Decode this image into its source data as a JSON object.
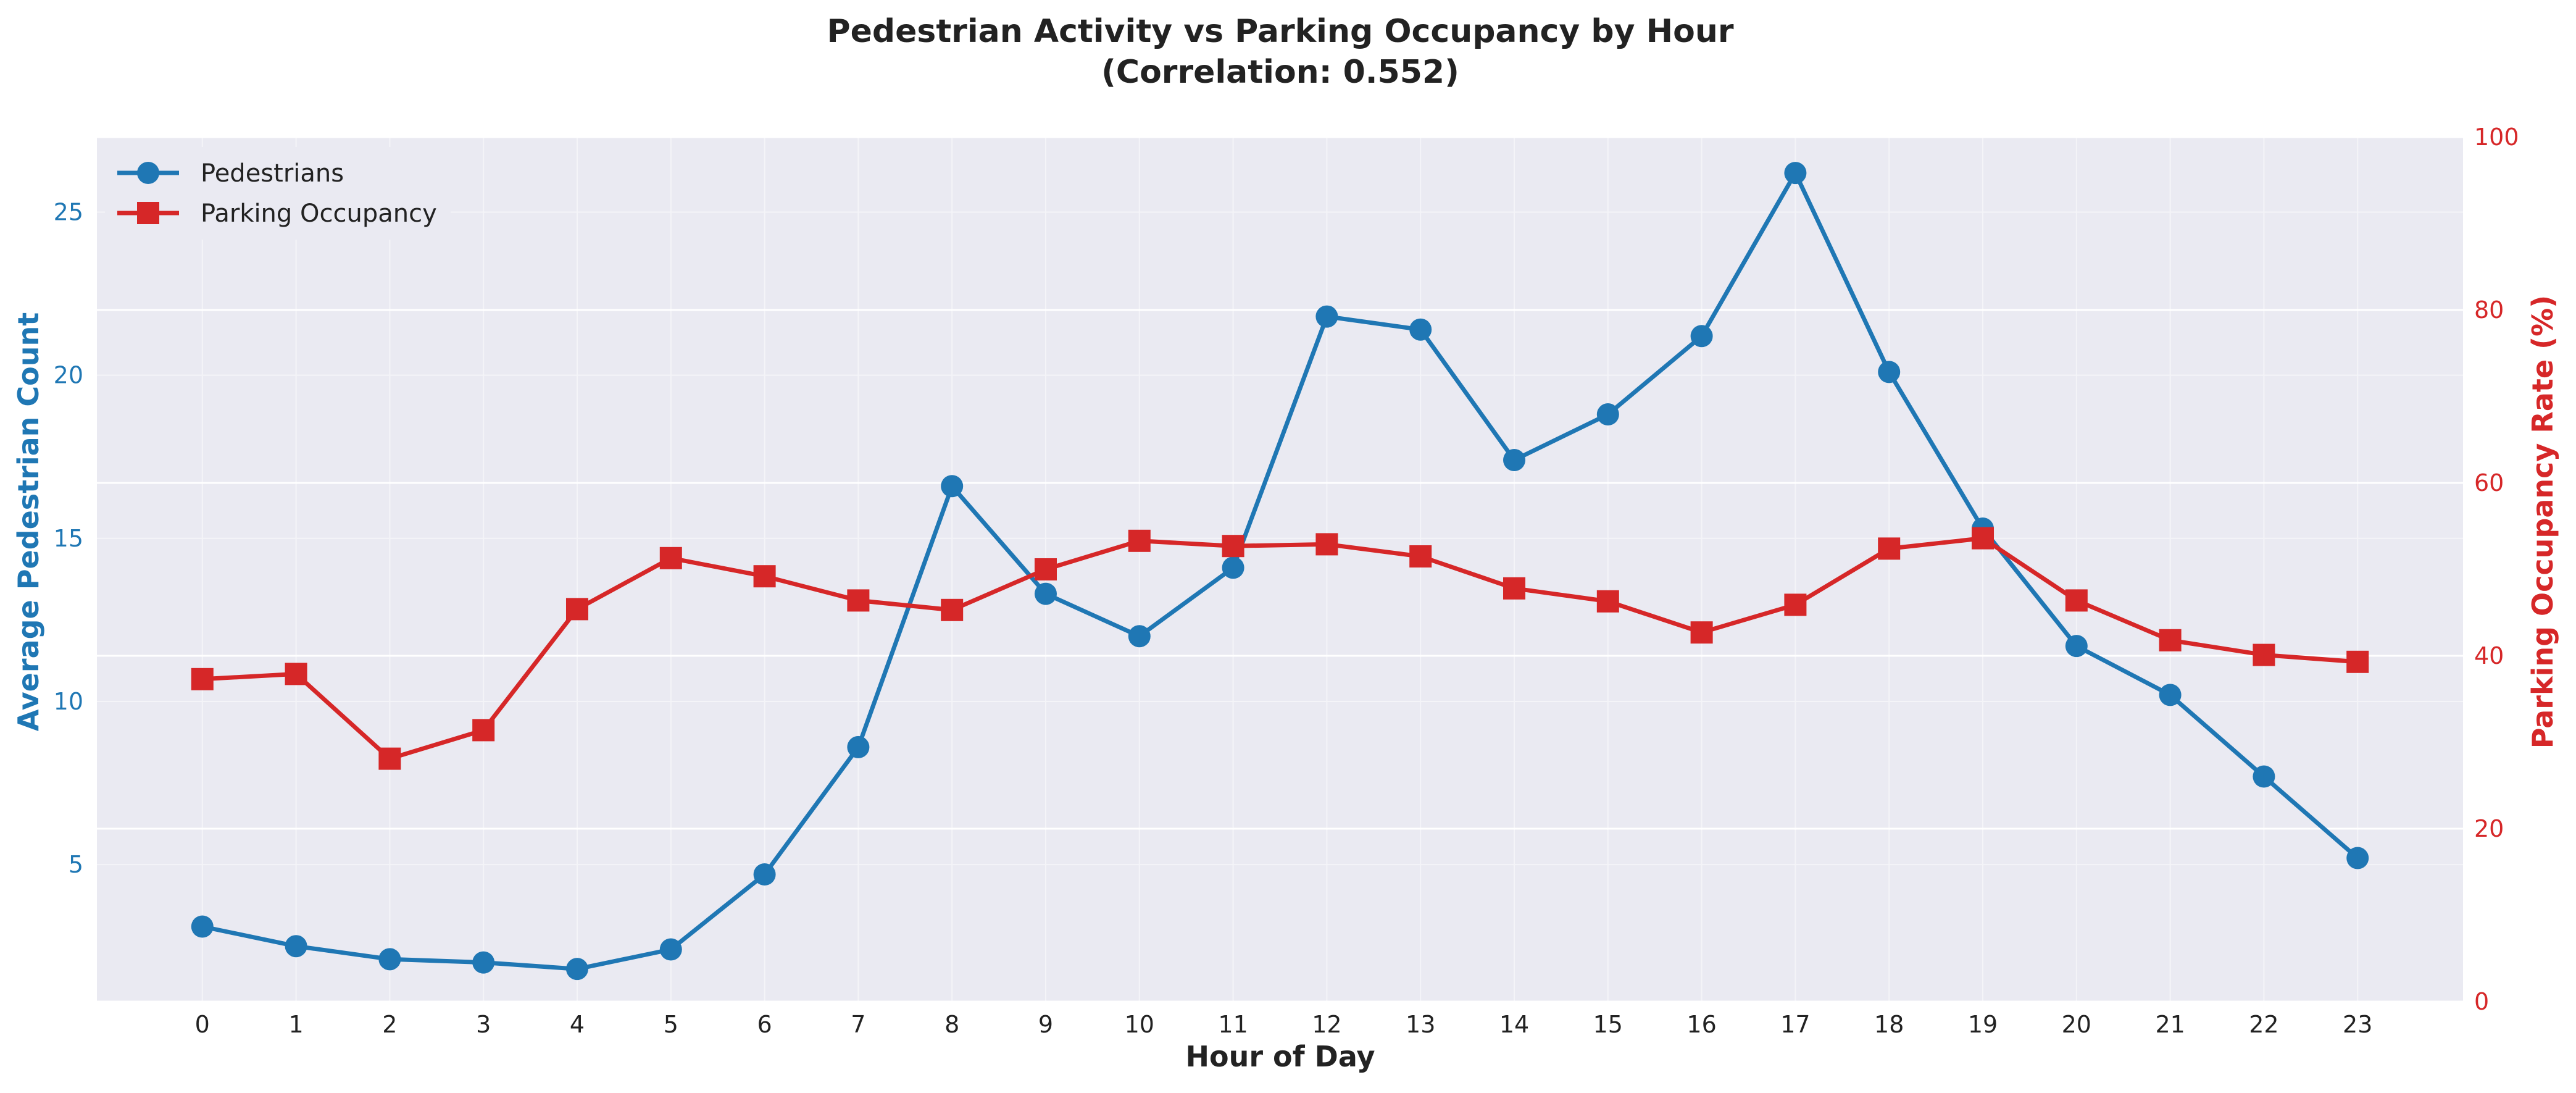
{
  "chart_data": {
    "type": "line",
    "title_line1": "Pedestrian Activity vs Parking Occupancy by Hour",
    "title_line2": "(Correlation: 0.552)",
    "xlabel": "Hour of Day",
    "ylabel_left": "Average Pedestrian Count",
    "ylabel_right": "Parking Occupancy Rate (%)",
    "x": [
      0,
      1,
      2,
      3,
      4,
      5,
      6,
      7,
      8,
      9,
      10,
      11,
      12,
      13,
      14,
      15,
      16,
      17,
      18,
      19,
      20,
      21,
      22,
      23
    ],
    "xlim": [
      -1.125,
      24.125
    ],
    "ylim_left": [
      0.8,
      27.3
    ],
    "ylim_right": [
      0,
      100
    ],
    "yticks_left": [
      5,
      10,
      15,
      20,
      25
    ],
    "yticks_right": [
      0,
      20,
      40,
      60,
      80,
      100
    ],
    "grid": true,
    "legend_position": "top-left",
    "series": [
      {
        "name": "Pedestrians",
        "axis": "left",
        "marker": "circle",
        "color": "#1f77b4",
        "values": [
          3.1,
          2.5,
          2.1,
          2.0,
          1.8,
          2.4,
          4.7,
          8.6,
          16.6,
          13.3,
          12.0,
          14.1,
          21.8,
          21.4,
          17.4,
          18.8,
          21.2,
          26.2,
          20.1,
          15.3,
          11.7,
          10.2,
          7.7,
          5.2
        ]
      },
      {
        "name": "Parking Occupancy",
        "axis": "right",
        "marker": "square",
        "color": "#d62728",
        "values": [
          37.3,
          37.9,
          28.1,
          31.4,
          45.4,
          51.3,
          49.2,
          46.4,
          45.3,
          50.0,
          53.3,
          52.7,
          52.9,
          51.5,
          47.8,
          46.3,
          42.7,
          45.9,
          52.4,
          53.6,
          46.4,
          41.8,
          40.1,
          39.3
        ]
      }
    ]
  }
}
